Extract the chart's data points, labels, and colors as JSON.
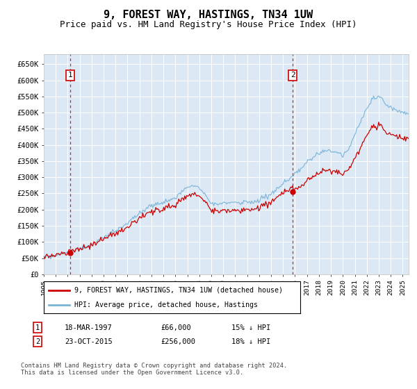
{
  "title": "9, FOREST WAY, HASTINGS, TN34 1UW",
  "subtitle": "Price paid vs. HM Land Registry's House Price Index (HPI)",
  "title_fontsize": 11,
  "subtitle_fontsize": 9,
  "plot_bg_color": "#dce9f5",
  "fig_bg_color": "#ffffff",
  "ylim": [
    0,
    680000
  ],
  "yticks": [
    0,
    50000,
    100000,
    150000,
    200000,
    250000,
    300000,
    350000,
    400000,
    450000,
    500000,
    550000,
    600000,
    650000
  ],
  "ytick_labels": [
    "£0",
    "£50K",
    "£100K",
    "£150K",
    "£200K",
    "£250K",
    "£300K",
    "£350K",
    "£400K",
    "£450K",
    "£500K",
    "£550K",
    "£600K",
    "£650K"
  ],
  "hpi_color": "#7ab4d8",
  "price_color": "#cc0000",
  "marker_color": "#cc0000",
  "vline_color": "#cc0000",
  "sale1_year": 1997.21,
  "sale1_price": 66000,
  "sale1_label": "1",
  "sale1_date": "18-MAR-1997",
  "sale1_pct": "15% ↓ HPI",
  "sale2_year": 2015.81,
  "sale2_price": 256000,
  "sale2_label": "2",
  "sale2_date": "23-OCT-2015",
  "sale2_pct": "18% ↓ HPI",
  "legend_line1": "9, FOREST WAY, HASTINGS, TN34 1UW (detached house)",
  "legend_line2": "HPI: Average price, detached house, Hastings",
  "footer": "Contains HM Land Registry data © Crown copyright and database right 2024.\nThis data is licensed under the Open Government Licence v3.0.",
  "xmin": 1995,
  "xmax": 2025.5
}
